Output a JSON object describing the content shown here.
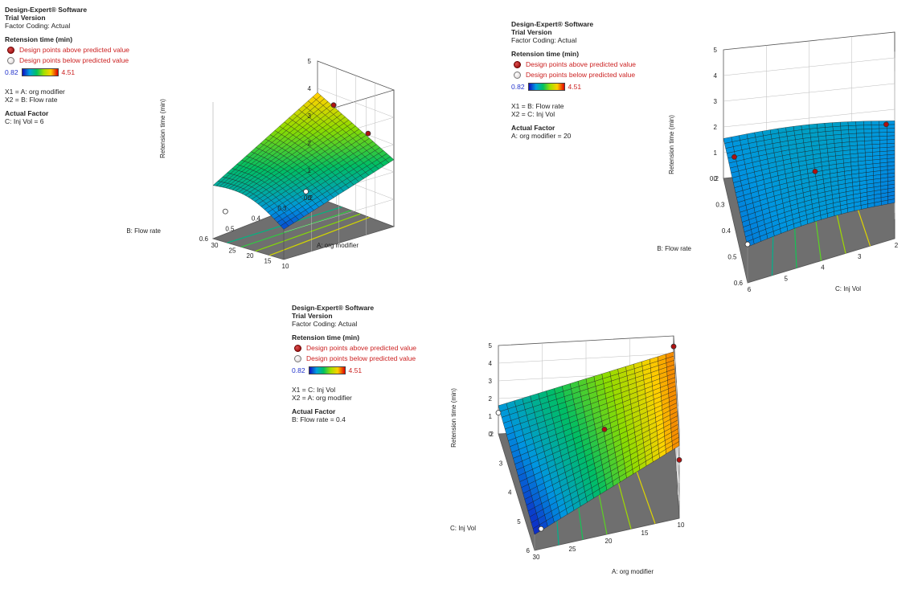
{
  "chart_data": [
    {
      "type": "surface3d",
      "software": "Design-Expert® Software",
      "version": "Trial Version",
      "coding": "Factor Coding: Actual",
      "response": "Retension time (min)",
      "above_label": "Design points above predicted value",
      "below_label": "Design points below predicted value",
      "color_min": "0.82",
      "color_max": "4.51",
      "x1": "X1 = A: org modifier",
      "x2": "X2 = B: Flow rate",
      "actual_factor_title": "Actual Factor",
      "actual_factor": "C: Inj Vol = 6",
      "zlabel": "Retension time (min)",
      "xlabel": "A: org modifier",
      "ylabel": "B: Flow rate",
      "zticks": [
        "0",
        "1",
        "2",
        "3",
        "4",
        "5"
      ],
      "xticks": [
        "30",
        "25",
        "20",
        "15",
        "10"
      ],
      "yticks": [
        "0.2",
        "0.3",
        "0.4",
        "0.5",
        "0.6"
      ],
      "zlim": [
        0,
        5
      ]
    },
    {
      "type": "surface3d",
      "software": "Design-Expert® Software",
      "version": "Trial Version",
      "coding": "Factor Coding: Actual",
      "response": "Retension time (min)",
      "above_label": "Design points above predicted value",
      "below_label": "Design points below predicted value",
      "color_min": "0.82",
      "color_max": "4.51",
      "x1": "X1 = B: Flow rate",
      "x2": "X2 = C: Inj Vol",
      "actual_factor_title": "Actual Factor",
      "actual_factor": "A: org modifier = 20",
      "zlabel": "Retension time (min)",
      "xlabel": "C: Inj Vol",
      "ylabel": "B: Flow rate",
      "zticks": [
        "0",
        "1",
        "2",
        "3",
        "4",
        "5"
      ],
      "xticks": [
        "6",
        "5",
        "4",
        "3",
        "2"
      ],
      "yticks": [
        "0.2",
        "0.3",
        "0.4",
        "0.5",
        "0.6"
      ],
      "zlim": [
        0,
        5
      ]
    },
    {
      "type": "surface3d",
      "software": "Design-Expert® Software",
      "version": "Trial Version",
      "coding": "Factor Coding: Actual",
      "response": "Retension time (min)",
      "above_label": "Design points above predicted value",
      "below_label": "Design points below predicted value",
      "color_min": "0.82",
      "color_max": "4.51",
      "x1": "X1 = C: Inj Vol",
      "x2": "X2 = A: org modifier",
      "actual_factor_title": "Actual Factor",
      "actual_factor": "B: Flow rate = 0.4",
      "zlabel": "Retension time (min)",
      "xlabel": "A: org modifier",
      "ylabel": "C: Inj Vol",
      "zticks": [
        "0",
        "1",
        "2",
        "3",
        "4",
        "5"
      ],
      "xticks": [
        "30",
        "25",
        "20",
        "15",
        "10"
      ],
      "yticks": [
        "2",
        "3",
        "4",
        "5",
        "6"
      ],
      "zlim": [
        0,
        5
      ]
    }
  ]
}
